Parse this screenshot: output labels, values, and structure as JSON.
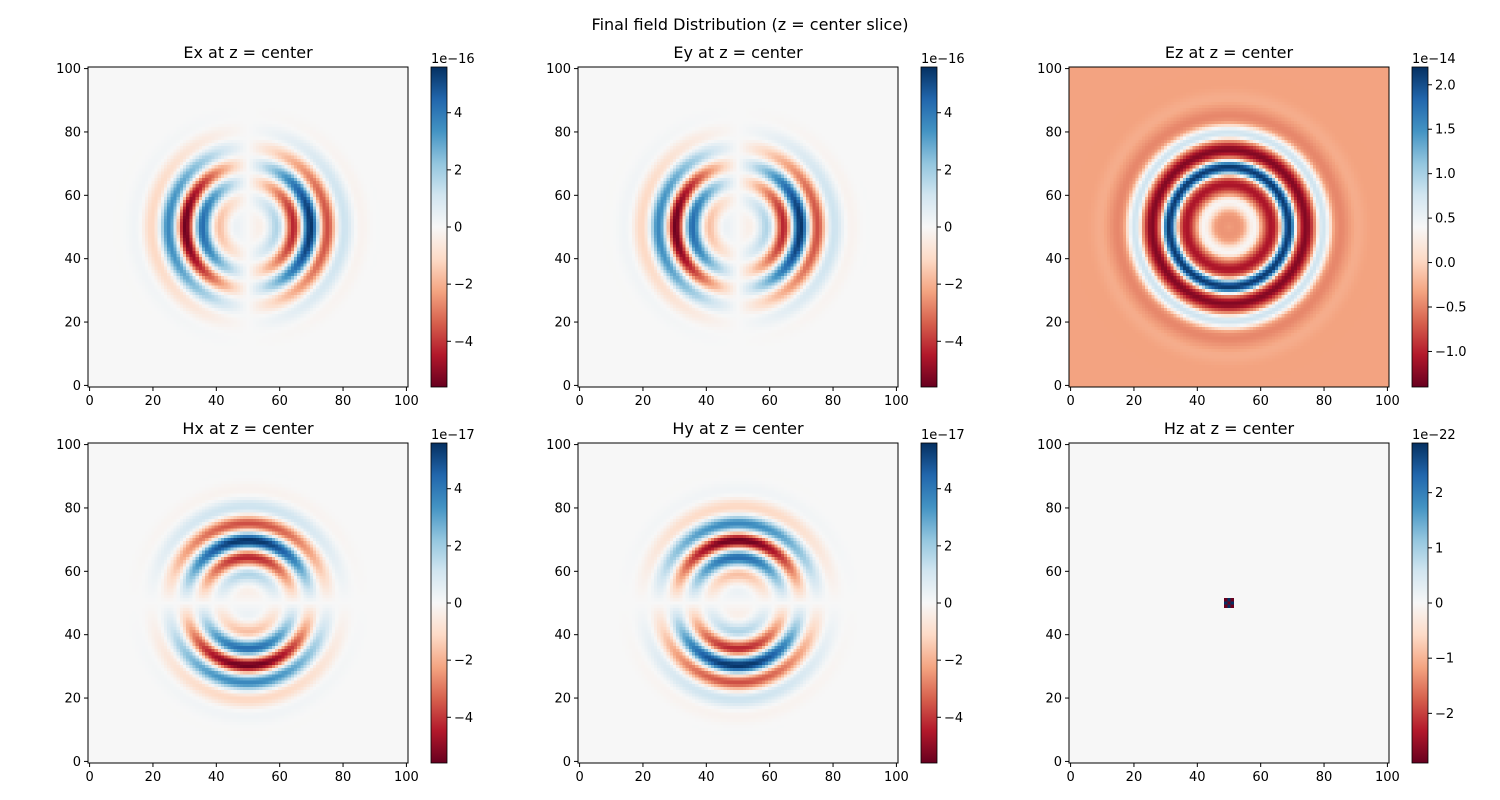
{
  "figure": {
    "title": "Final field Distribution (z = center slice)"
  },
  "colormap": {
    "name": "RdBu",
    "low": "#67001f",
    "mid": "#f7f7f7",
    "high": "#053061"
  },
  "chart_data": [
    {
      "type": "heatmap",
      "title": "Ex at z = center",
      "field": "Ex",
      "pattern": "rings-cos-x",
      "grid": 101,
      "xlim": [
        0,
        100
      ],
      "ylim": [
        0,
        100
      ],
      "xticks": [
        "0",
        "20",
        "40",
        "60",
        "80",
        "100"
      ],
      "yticks": [
        "0",
        "20",
        "40",
        "60",
        "80",
        "100"
      ],
      "colorbar": {
        "multiplier": "1e−16",
        "min": -5.6,
        "max": 5.6,
        "ticks": [
          {
            "v": -4,
            "label": "−4"
          },
          {
            "v": -2,
            "label": "−2"
          },
          {
            "v": 0,
            "label": "0"
          },
          {
            "v": 2,
            "label": "2"
          },
          {
            "v": 4,
            "label": "4"
          }
        ]
      }
    },
    {
      "type": "heatmap",
      "title": "Ey at z = center",
      "field": "Ey",
      "pattern": "rings-cos-x",
      "grid": 101,
      "xlim": [
        0,
        100
      ],
      "ylim": [
        0,
        100
      ],
      "xticks": [
        "0",
        "20",
        "40",
        "60",
        "80",
        "100"
      ],
      "yticks": [
        "0",
        "20",
        "40",
        "60",
        "80",
        "100"
      ],
      "colorbar": {
        "multiplier": "1e−16",
        "min": -5.6,
        "max": 5.6,
        "ticks": [
          {
            "v": -4,
            "label": "−4"
          },
          {
            "v": -2,
            "label": "−2"
          },
          {
            "v": 0,
            "label": "0"
          },
          {
            "v": 2,
            "label": "2"
          },
          {
            "v": 4,
            "label": "4"
          }
        ]
      }
    },
    {
      "type": "heatmap",
      "title": "Ez at z = center",
      "field": "Ez",
      "pattern": "rings-radial",
      "grid": 101,
      "xlim": [
        0,
        100
      ],
      "ylim": [
        0,
        100
      ],
      "xticks": [
        "0",
        "20",
        "40",
        "60",
        "80",
        "100"
      ],
      "yticks": [
        "0",
        "20",
        "40",
        "60",
        "80",
        "100"
      ],
      "colorbar": {
        "multiplier": "1e−14",
        "min": -1.4,
        "max": 2.2,
        "ticks": [
          {
            "v": -1.0,
            "label": "−1.0"
          },
          {
            "v": -0.5,
            "label": "−0.5"
          },
          {
            "v": 0.0,
            "label": "0.0"
          },
          {
            "v": 0.5,
            "label": "0.5"
          },
          {
            "v": 1.0,
            "label": "1.0"
          },
          {
            "v": 1.5,
            "label": "1.5"
          },
          {
            "v": 2.0,
            "label": "2.0"
          }
        ]
      }
    },
    {
      "type": "heatmap",
      "title": "Hx at z = center",
      "field": "Hx",
      "pattern": "rings-sin-y",
      "grid": 101,
      "xlim": [
        0,
        100
      ],
      "ylim": [
        0,
        100
      ],
      "xticks": [
        "0",
        "20",
        "40",
        "60",
        "80",
        "100"
      ],
      "yticks": [
        "0",
        "20",
        "40",
        "60",
        "80",
        "100"
      ],
      "colorbar": {
        "multiplier": "1e−17",
        "min": -5.6,
        "max": 5.6,
        "ticks": [
          {
            "v": -4,
            "label": "−4"
          },
          {
            "v": -2,
            "label": "−2"
          },
          {
            "v": 0,
            "label": "0"
          },
          {
            "v": 2,
            "label": "2"
          },
          {
            "v": 4,
            "label": "4"
          }
        ]
      }
    },
    {
      "type": "heatmap",
      "title": "Hy at z = center",
      "field": "Hy",
      "pattern": "rings-sin-y-neg",
      "grid": 101,
      "xlim": [
        0,
        100
      ],
      "ylim": [
        0,
        100
      ],
      "xticks": [
        "0",
        "20",
        "40",
        "60",
        "80",
        "100"
      ],
      "yticks": [
        "0",
        "20",
        "40",
        "60",
        "80",
        "100"
      ],
      "colorbar": {
        "multiplier": "1e−17",
        "min": -5.6,
        "max": 5.6,
        "ticks": [
          {
            "v": -4,
            "label": "−4"
          },
          {
            "v": -2,
            "label": "−2"
          },
          {
            "v": 0,
            "label": "0"
          },
          {
            "v": 2,
            "label": "2"
          },
          {
            "v": 4,
            "label": "4"
          }
        ]
      }
    },
    {
      "type": "heatmap",
      "title": "Hz at z = center",
      "field": "Hz",
      "pattern": "center-checker",
      "grid": 101,
      "xlim": [
        0,
        100
      ],
      "ylim": [
        0,
        100
      ],
      "xticks": [
        "0",
        "20",
        "40",
        "60",
        "80",
        "100"
      ],
      "yticks": [
        "0",
        "20",
        "40",
        "60",
        "80",
        "100"
      ],
      "colorbar": {
        "multiplier": "1e−22",
        "min": -2.9,
        "max": 2.9,
        "ticks": [
          {
            "v": -2,
            "label": "−2"
          },
          {
            "v": -1,
            "label": "−1"
          },
          {
            "v": 0,
            "label": "0"
          },
          {
            "v": 1,
            "label": "1"
          },
          {
            "v": 2,
            "label": "2"
          }
        ]
      }
    }
  ]
}
